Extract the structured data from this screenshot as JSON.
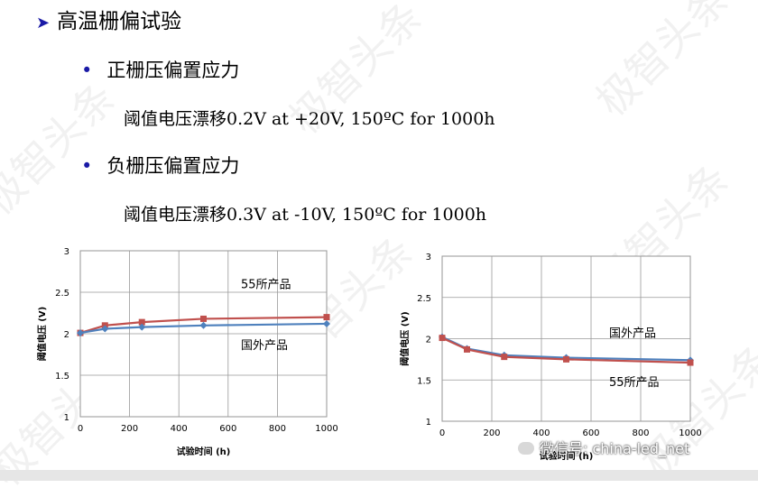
{
  "heading": "高温栅偏试验",
  "sections": [
    {
      "title": "正栅压偏置应力",
      "detail": "阈值电压漂移0.2V at +20V, 150ºC  for 1000h"
    },
    {
      "title": "负栅压偏置应力",
      "detail": "阈值电压漂移0.3V at -10V, 150ºC  for 1000h"
    }
  ],
  "watermark": "极智头条",
  "wechat": "微信号: china-led_net",
  "colors": {
    "series_a": "#c0504d",
    "series_b": "#4f81bd",
    "accent": "#1a1aa6"
  },
  "chart_data": [
    {
      "type": "line",
      "xlabel": "试验时间 (h)",
      "ylabel": "阈值电压 (V)",
      "xlim": [
        0,
        1000
      ],
      "ylim": [
        1,
        3
      ],
      "xticks": [
        "0",
        "200",
        "400",
        "600",
        "800",
        "1000"
      ],
      "yticks": [
        "1",
        "1.5",
        "2",
        "2.5",
        "3"
      ],
      "grid": true,
      "series": [
        {
          "name": "55所产品",
          "color": "#c0504d",
          "marker": "square",
          "x": [
            0,
            100,
            250,
            500,
            1000
          ],
          "y": [
            2.01,
            2.1,
            2.14,
            2.18,
            2.2
          ]
        },
        {
          "name": "国外产品",
          "color": "#4f81bd",
          "marker": "diamond",
          "x": [
            0,
            100,
            250,
            500,
            1000
          ],
          "y": [
            2.01,
            2.06,
            2.08,
            2.1,
            2.12
          ]
        }
      ]
    },
    {
      "type": "line",
      "xlabel": "试验时间 (h)",
      "ylabel": "阈值电压 (V)",
      "xlim": [
        0,
        1000
      ],
      "ylim": [
        1,
        3
      ],
      "xticks": [
        "0",
        "200",
        "400",
        "600",
        "800",
        "1000"
      ],
      "yticks": [
        "1",
        "1.5",
        "2",
        "2.5",
        "3"
      ],
      "grid": true,
      "series": [
        {
          "name": "国外产品",
          "color": "#4f81bd",
          "marker": "diamond",
          "x": [
            0,
            100,
            250,
            500,
            1000
          ],
          "y": [
            2.02,
            1.88,
            1.8,
            1.77,
            1.74
          ]
        },
        {
          "name": "55所产品",
          "color": "#c0504d",
          "marker": "square",
          "x": [
            0,
            100,
            250,
            500,
            1000
          ],
          "y": [
            2.01,
            1.87,
            1.78,
            1.75,
            1.71
          ]
        }
      ]
    }
  ]
}
